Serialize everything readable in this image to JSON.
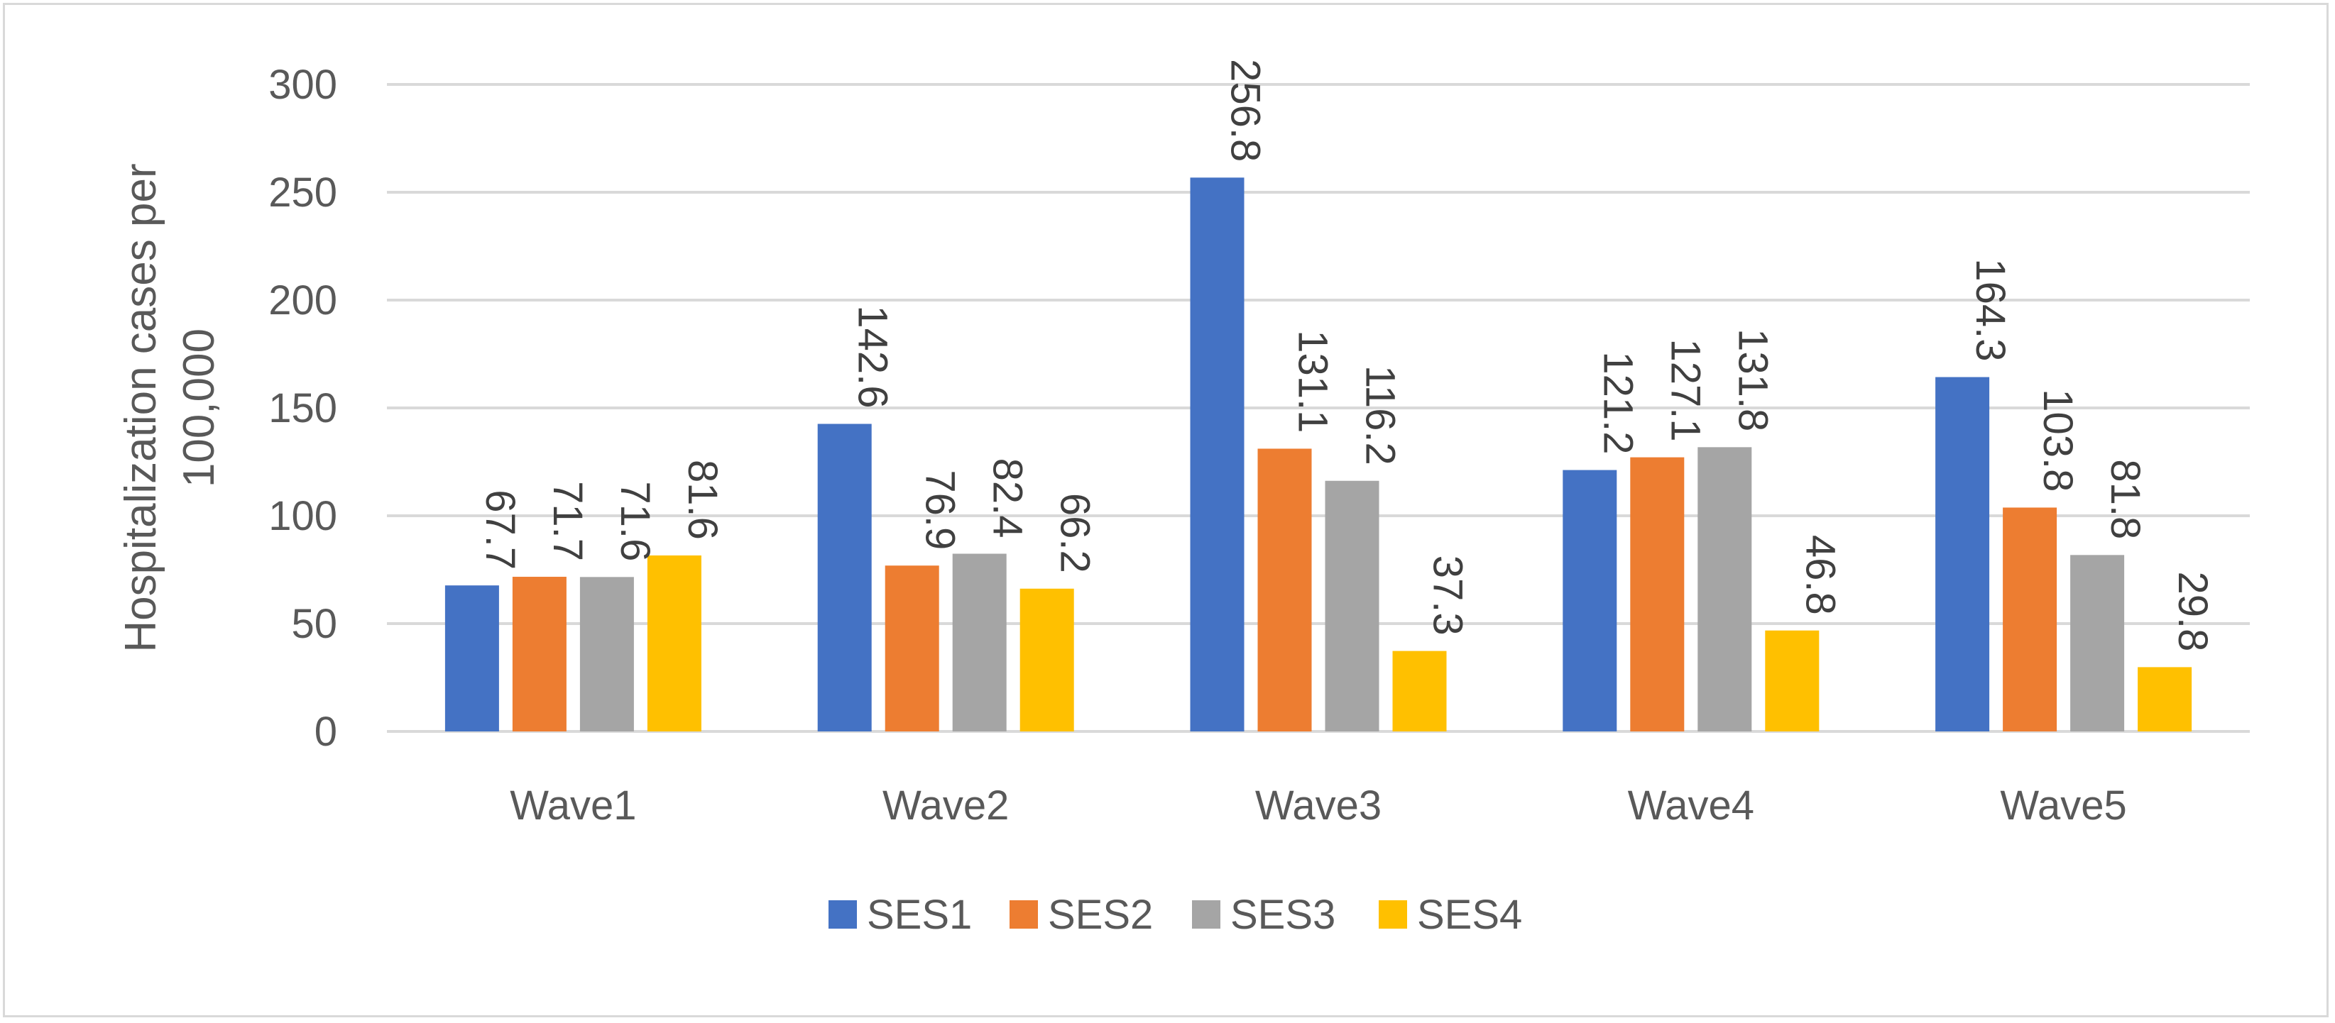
{
  "chart_data": {
    "type": "bar",
    "title": "",
    "xlabel": "",
    "ylabel_lines": [
      "Hospitalization cases per",
      "100,000"
    ],
    "ylim": [
      0,
      300
    ],
    "yticks": [
      0,
      50,
      100,
      150,
      200,
      250,
      300
    ],
    "grid": true,
    "legend_position": "bottom",
    "categories": [
      "Wave1",
      "Wave2",
      "Wave3",
      "Wave4",
      "Wave5"
    ],
    "series": [
      {
        "name": "SES1",
        "color": "#4472C4",
        "values": [
          67.7,
          142.6,
          256.8,
          121.2,
          164.3
        ]
      },
      {
        "name": "SES2",
        "color": "#ED7D31",
        "values": [
          71.7,
          76.9,
          131.1,
          127.1,
          103.8
        ]
      },
      {
        "name": "SES3",
        "color": "#A5A5A5",
        "values": [
          71.6,
          82.4,
          116.2,
          131.8,
          81.8
        ]
      },
      {
        "name": "SES4",
        "color": "#FFC000",
        "values": [
          81.6,
          66.2,
          37.3,
          46.8,
          29.8
        ]
      }
    ]
  }
}
